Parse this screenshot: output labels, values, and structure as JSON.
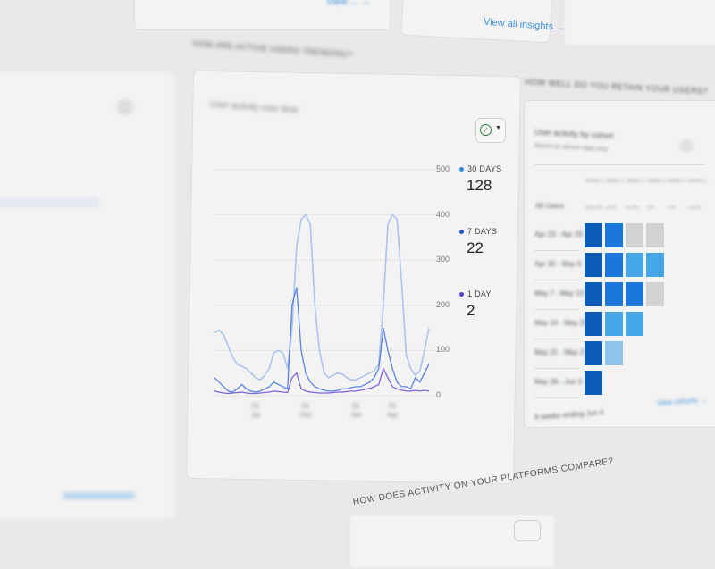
{
  "top": {
    "left_link": "View ... →",
    "insights_link": "View all insights",
    "insights_arrow": "→"
  },
  "trend": {
    "section_title": "HOW ARE ACTIVE USERS TRENDING?",
    "card_title": "User activity over time",
    "legend": [
      {
        "label": "30 DAYS",
        "value": "128",
        "color": "#2a8be0"
      },
      {
        "label": "7 DAYS",
        "value": "22",
        "color": "#2a50d0"
      },
      {
        "label": "1 DAY",
        "value": "2",
        "color": "#5a3ad0"
      }
    ]
  },
  "chart_data": {
    "type": "line",
    "ylim": [
      0,
      500
    ],
    "y_ticks": [
      "500",
      "400",
      "300",
      "200",
      "100",
      "0"
    ],
    "x_ticks": [
      {
        "label": "01 Jul",
        "index": 9
      },
      {
        "label": "01 Oct",
        "index": 20
      },
      {
        "label": "01 Jan",
        "index": 31
      },
      {
        "label": "01 Apr",
        "index": 39
      }
    ],
    "grid": true,
    "series": [
      {
        "name": "30 DAYS",
        "color": "#9ab8ec",
        "values": [
          140,
          145,
          135,
          110,
          85,
          70,
          65,
          60,
          50,
          40,
          35,
          45,
          60,
          95,
          100,
          95,
          60,
          150,
          330,
          390,
          400,
          380,
          200,
          100,
          50,
          40,
          45,
          50,
          48,
          40,
          35,
          35,
          40,
          45,
          50,
          55,
          70,
          200,
          380,
          400,
          390,
          250,
          90,
          60,
          45,
          55,
          100,
          150
        ]
      },
      {
        "name": "7 DAYS",
        "color": "#3f6fe0",
        "values": [
          40,
          30,
          20,
          10,
          8,
          15,
          25,
          15,
          10,
          8,
          10,
          15,
          20,
          30,
          25,
          20,
          15,
          200,
          240,
          100,
          50,
          30,
          20,
          15,
          12,
          10,
          10,
          12,
          15,
          15,
          18,
          20,
          20,
          25,
          30,
          40,
          60,
          150,
          100,
          60,
          30,
          20,
          20,
          15,
          40,
          30,
          50,
          70
        ]
      },
      {
        "name": "1 DAY",
        "color": "#6a48d6",
        "values": [
          10,
          8,
          6,
          5,
          6,
          7,
          8,
          6,
          5,
          5,
          6,
          7,
          8,
          10,
          9,
          8,
          7,
          40,
          50,
          15,
          10,
          8,
          7,
          6,
          6,
          6,
          7,
          8,
          8,
          9,
          10,
          10,
          12,
          14,
          16,
          20,
          25,
          60,
          40,
          20,
          15,
          12,
          10,
          10,
          12,
          10,
          12,
          10
        ]
      }
    ]
  },
  "retention": {
    "section_title": "HOW WELL DO YOU RETAIN YOUR USERS?",
    "card_title": "User activity by cohort",
    "card_subtitle": "Based on device data only",
    "columns": [
      "Week 0",
      "Week 1",
      "Week 2",
      "Week 3",
      "Week 4",
      "Week 5"
    ],
    "all_users_label": "All Users",
    "all_users_values": [
      "100.0%",
      "11%",
      "4.4%",
      "2%",
      "1%",
      "0.5%"
    ],
    "rows": [
      {
        "label": "Apr 23 - Apr 29",
        "levels": [
          4,
          3,
          0,
          0
        ]
      },
      {
        "label": "Apr 30 - May 6",
        "levels": [
          4,
          3,
          2,
          2
        ]
      },
      {
        "label": "May 7 - May 13",
        "levels": [
          4,
          3,
          3,
          0
        ]
      },
      {
        "label": "May 14 - May 20",
        "levels": [
          4,
          2,
          2
        ]
      },
      {
        "label": "May 21 - May 27",
        "levels": [
          4,
          1
        ]
      },
      {
        "label": "May 28 - Jun 3",
        "levels": [
          4
        ]
      }
    ],
    "level_colors": [
      "#d2d2d2",
      "#8cc4ee",
      "#45a6e8",
      "#1a78dc",
      "#0a5cb8"
    ],
    "footer": "6 weeks ending Jun 4",
    "view_link": "View cohorts →"
  },
  "platforms": {
    "section_title": "HOW DOES ACTIVITY ON YOUR PLATFORMS COMPARE?"
  }
}
